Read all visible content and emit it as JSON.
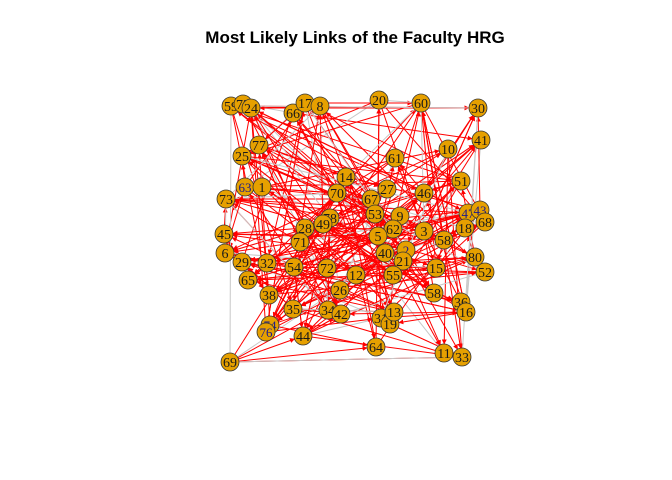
{
  "title": "Most Likely Links of the Faculty HRG",
  "colors": {
    "edge": "#ff0000",
    "edge_light": "#c8c8c8",
    "node_fill": "#e6a000",
    "node_stroke": "#333333",
    "label": "#1a1a1a"
  },
  "nodes": [
    {
      "id": "59"
    },
    {
      "id": "72"
    },
    {
      "id": "24"
    },
    {
      "id": "66"
    },
    {
      "id": "17"
    },
    {
      "id": "8"
    },
    {
      "id": "20"
    },
    {
      "id": "60"
    },
    {
      "id": "30"
    },
    {
      "id": "41"
    },
    {
      "id": "77"
    },
    {
      "id": "25"
    },
    {
      "id": "61"
    },
    {
      "id": "10"
    },
    {
      "id": "14"
    },
    {
      "id": "63"
    },
    {
      "id": "1"
    },
    {
      "id": "70"
    },
    {
      "id": "27"
    },
    {
      "id": "46"
    },
    {
      "id": "51"
    },
    {
      "id": "73"
    },
    {
      "id": "67"
    },
    {
      "id": "53"
    },
    {
      "id": "9"
    },
    {
      "id": "47"
    },
    {
      "id": "43"
    },
    {
      "id": "78"
    },
    {
      "id": "49"
    },
    {
      "id": "28"
    },
    {
      "id": "62"
    },
    {
      "id": "3"
    },
    {
      "id": "45"
    },
    {
      "id": "71"
    },
    {
      "id": "5"
    },
    {
      "id": "58"
    },
    {
      "id": "18"
    },
    {
      "id": "68"
    },
    {
      "id": "6"
    },
    {
      "id": "40"
    },
    {
      "id": "2"
    },
    {
      "id": "80"
    },
    {
      "id": "29"
    },
    {
      "id": "32"
    },
    {
      "id": "54"
    },
    {
      "id": "72b",
      "label": "72"
    },
    {
      "id": "12"
    },
    {
      "id": "21"
    },
    {
      "id": "15"
    },
    {
      "id": "52"
    },
    {
      "id": "65"
    },
    {
      "id": "55"
    },
    {
      "id": "26"
    },
    {
      "id": "38"
    },
    {
      "id": "35"
    },
    {
      "id": "34"
    },
    {
      "id": "42"
    },
    {
      "id": "58b",
      "label": "58"
    },
    {
      "id": "36"
    },
    {
      "id": "16"
    },
    {
      "id": "31"
    },
    {
      "id": "19"
    },
    {
      "id": "13"
    },
    {
      "id": "74"
    },
    {
      "id": "44"
    },
    {
      "id": "64"
    },
    {
      "id": "11"
    },
    {
      "id": "33"
    },
    {
      "id": "69"
    },
    {
      "id": "76"
    }
  ]
}
